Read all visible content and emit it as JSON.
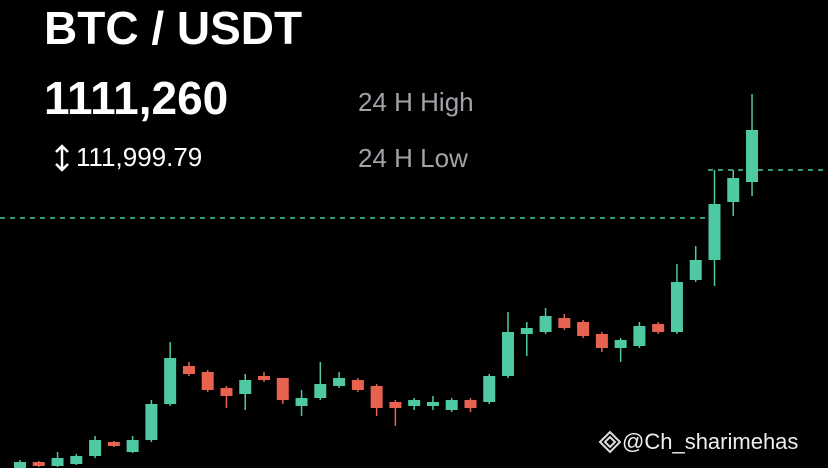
{
  "chart_data": {
    "type": "candlestick",
    "title": "BTC / USDT",
    "price": "1111,260",
    "change": "111,999.79",
    "high_label": "24 H High",
    "low_label": "24 H Low",
    "watermark": "@Ch_sharimehas",
    "up_color": "#4fc9a4",
    "down_color": "#e8634f",
    "ylim": [
      0,
      468
    ],
    "open": [
      0,
      6,
      2,
      4,
      12,
      26,
      16,
      28,
      64,
      102,
      96,
      80,
      74,
      92,
      90,
      62,
      70,
      82,
      88,
      82,
      66,
      62,
      62,
      58,
      68,
      66,
      92,
      134,
      136,
      150,
      146,
      134,
      120,
      122,
      144,
      136,
      188,
      208,
      266,
      286
    ],
    "high": [
      8,
      7,
      16,
      14,
      32,
      27,
      32,
      68,
      126,
      106,
      98,
      82,
      94,
      96,
      90,
      78,
      106,
      96,
      90,
      84,
      68,
      70,
      72,
      70,
      70,
      94,
      156,
      146,
      160,
      154,
      148,
      136,
      130,
      146,
      146,
      204,
      222,
      298,
      298,
      374
    ],
    "low": [
      0,
      1,
      1,
      3,
      10,
      21,
      15,
      26,
      62,
      92,
      76,
      60,
      58,
      86,
      64,
      52,
      68,
      80,
      76,
      52,
      42,
      58,
      58,
      56,
      56,
      64,
      90,
      112,
      134,
      138,
      130,
      116,
      106,
      120,
      134,
      134,
      186,
      182,
      252,
      272
    ],
    "close": [
      6,
      2,
      10,
      12,
      28,
      22,
      28,
      64,
      110,
      94,
      78,
      72,
      88,
      88,
      68,
      70,
      84,
      90,
      78,
      60,
      60,
      68,
      66,
      68,
      60,
      92,
      136,
      140,
      152,
      140,
      132,
      120,
      128,
      142,
      136,
      186,
      208,
      264,
      290,
      338
    ]
  }
}
